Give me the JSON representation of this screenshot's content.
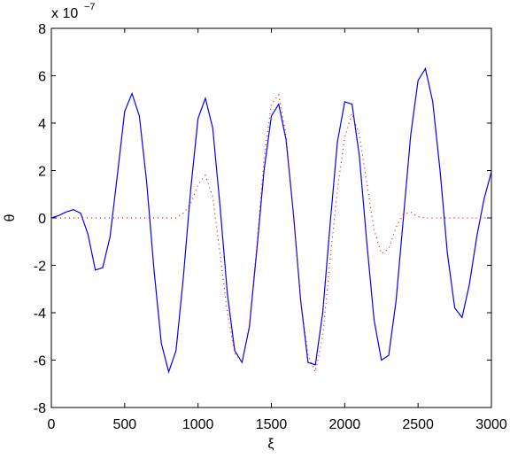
{
  "chart_data": {
    "type": "line",
    "xlabel": "ξ",
    "ylabel": "θ",
    "y_multiplier": "x 10",
    "y_multiplier_exponent": "−7",
    "x": [
      0,
      50,
      100,
      150,
      200,
      250,
      300,
      350,
      400,
      450,
      500,
      550,
      600,
      650,
      700,
      750,
      800,
      850,
      900,
      950,
      1000,
      1050,
      1100,
      1150,
      1200,
      1250,
      1300,
      1350,
      1400,
      1450,
      1500,
      1550,
      1600,
      1650,
      1700,
      1750,
      1800,
      1850,
      1900,
      1950,
      2000,
      2050,
      2100,
      2150,
      2200,
      2250,
      2300,
      2350,
      2400,
      2450,
      2500,
      2550,
      2600,
      2650,
      2700,
      2750,
      2800,
      2850,
      2900,
      2950,
      3000
    ],
    "series": [
      {
        "color": "#0000ff",
        "style": "solid",
        "values": [
          0,
          0.1,
          0.25,
          0.35,
          0.2,
          -0.7,
          -2.2,
          -2.1,
          -0.8,
          1.8,
          4.5,
          5.25,
          4.3,
          1.5,
          -2.2,
          -5.3,
          -6.5,
          -5.6,
          -2.5,
          1.2,
          4.2,
          5.05,
          3.8,
          0.5,
          -3.2,
          -5.6,
          -6.1,
          -4.6,
          -1.4,
          2.0,
          4.3,
          4.8,
          3.3,
          0.2,
          -3.5,
          -6.1,
          -6.2,
          -4.0,
          -0.3,
          3.2,
          4.9,
          4.8,
          2.6,
          -1.0,
          -4.3,
          -6.0,
          -5.8,
          -3.5,
          0.0,
          3.5,
          5.8,
          6.3,
          4.9,
          2.0,
          -1.5,
          -3.8,
          -4.2,
          -2.8,
          -0.8,
          0.8,
          1.95
        ]
      },
      {
        "color": "#ff0000",
        "style": "dotted",
        "values": [
          0,
          0,
          0,
          0,
          0,
          0,
          0,
          0,
          0,
          0,
          0,
          0,
          0,
          0,
          0,
          0,
          0,
          0,
          0.2,
          0.6,
          1.4,
          1.8,
          0.9,
          -1.5,
          -4.0,
          -5.7,
          -6.1,
          -4.5,
          -1.2,
          2.5,
          4.8,
          5.2,
          3.5,
          0.2,
          -3.5,
          -5.8,
          -6.5,
          -5.0,
          -1.8,
          1.2,
          3.4,
          4.4,
          3.5,
          1.5,
          -0.5,
          -1.5,
          -1.3,
          -0.4,
          0.15,
          0.25,
          0.05,
          0,
          0,
          0,
          0,
          0,
          0,
          0,
          0,
          0,
          0
        ]
      }
    ],
    "xlim": [
      0,
      3000
    ],
    "xticks": [
      0,
      500,
      1000,
      1500,
      2000,
      2500,
      3000
    ],
    "ylim": [
      -8,
      8
    ],
    "yticks": [
      -8,
      -6,
      -4,
      -2,
      0,
      2,
      4,
      6,
      8
    ]
  }
}
